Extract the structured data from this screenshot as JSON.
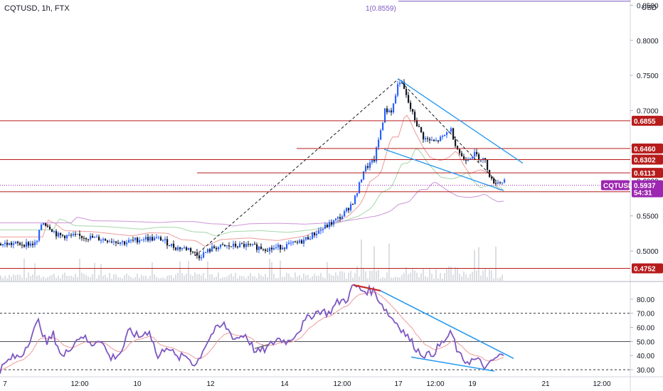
{
  "header": {
    "symbol_line": "CQTUSD, 1h, FTX",
    "fib_label": "1(0.8559)",
    "currency": "USD"
  },
  "colors": {
    "up": "#2962ff",
    "down": "#131722",
    "level": "#b71c1c",
    "trend": "#2196f3",
    "rsi": "#7e57c2",
    "tag_bg": "#b71c1c",
    "symbol_tag_bg": "#9c27b0"
  },
  "chart_data": [
    {
      "type": "candlestick",
      "title": "CQTUSD, 1h, FTX",
      "ylabel": "USD",
      "ylim": [
        0.4575,
        0.8575
      ],
      "y_ticks": [
        0.5,
        0.55,
        0.6,
        0.65,
        0.7,
        0.75,
        0.8,
        0.85
      ],
      "y_tick_labels": [
        "0.5000",
        "0.5500",
        "0.6000",
        "0.6500",
        "0.7000",
        "0.7500",
        "0.8000",
        "0.8500"
      ],
      "x_tick_labels": [
        "7",
        "12:00",
        "10",
        "12",
        "14",
        "12:00",
        "17",
        "12:00",
        "19",
        "21",
        "12:00"
      ],
      "price_path": [
        [
          0,
          0.51
        ],
        [
          50,
          0.51
        ],
        [
          58,
          0.542
        ],
        [
          68,
          0.535
        ],
        [
          80,
          0.522
        ],
        [
          120,
          0.52
        ],
        [
          175,
          0.512
        ],
        [
          200,
          0.518
        ],
        [
          225,
          0.517
        ],
        [
          245,
          0.505
        ],
        [
          265,
          0.503
        ],
        [
          278,
          0.492
        ],
        [
          300,
          0.505
        ],
        [
          340,
          0.508
        ],
        [
          380,
          0.503
        ],
        [
          420,
          0.512
        ],
        [
          450,
          0.53
        ],
        [
          480,
          0.55
        ],
        [
          495,
          0.57
        ],
        [
          500,
          0.58
        ],
        [
          510,
          0.615
        ],
        [
          525,
          0.63
        ],
        [
          540,
          0.7
        ],
        [
          550,
          0.7
        ],
        [
          560,
          0.745
        ],
        [
          565,
          0.735
        ],
        [
          575,
          0.705
        ],
        [
          585,
          0.68
        ],
        [
          595,
          0.66
        ],
        [
          610,
          0.655
        ],
        [
          622,
          0.662
        ],
        [
          632,
          0.675
        ],
        [
          640,
          0.65
        ],
        [
          650,
          0.63
        ],
        [
          665,
          0.638
        ],
        [
          680,
          0.63
        ],
        [
          690,
          0.6
        ],
        [
          700,
          0.598
        ],
        [
          708,
          0.6
        ]
      ],
      "levels": [
        {
          "label": "0.6855",
          "value": 0.6855
        },
        {
          "label": "0.6460",
          "value": 0.646
        },
        {
          "label": "0.6302",
          "value": 0.6302
        },
        {
          "label": "0.6113",
          "value": 0.6113
        },
        {
          "label": "0.5843",
          "value": 0.5843
        },
        {
          "label": "0.4752",
          "value": 0.4752
        }
      ],
      "last_price": {
        "symbol": "CQTUSD",
        "price": "0.5937",
        "countdown": "54:31",
        "value": 0.5937
      },
      "fib_level": 0.8559
    },
    {
      "type": "line",
      "ylim": [
        25,
        92
      ],
      "y_ticks": [
        30,
        40,
        50,
        60,
        70,
        80
      ],
      "y_tick_labels": [
        "30.00",
        "40.00",
        "50.00",
        "60.00",
        "70.00",
        "80.00"
      ],
      "reference_lines": [
        30,
        50,
        70
      ],
      "rsi_path": [
        [
          0,
          30
        ],
        [
          15,
          38
        ],
        [
          30,
          40
        ],
        [
          45,
          55
        ],
        [
          55,
          65
        ],
        [
          65,
          48
        ],
        [
          75,
          55
        ],
        [
          88,
          38
        ],
        [
          100,
          47
        ],
        [
          115,
          55
        ],
        [
          128,
          47
        ],
        [
          140,
          53
        ],
        [
          155,
          38
        ],
        [
          170,
          42
        ],
        [
          182,
          58
        ],
        [
          195,
          53
        ],
        [
          210,
          58
        ],
        [
          222,
          38
        ],
        [
          235,
          48
        ],
        [
          248,
          38
        ],
        [
          262,
          40
        ],
        [
          275,
          33
        ],
        [
          288,
          47
        ],
        [
          300,
          57
        ],
        [
          315,
          62
        ],
        [
          330,
          52
        ],
        [
          345,
          55
        ],
        [
          360,
          42
        ],
        [
          375,
          45
        ],
        [
          390,
          52
        ],
        [
          405,
          50
        ],
        [
          420,
          58
        ],
        [
          435,
          68
        ],
        [
          450,
          72
        ],
        [
          462,
          70
        ],
        [
          475,
          78
        ],
        [
          488,
          80
        ],
        [
          497,
          90
        ],
        [
          510,
          86
        ],
        [
          525,
          86
        ],
        [
          535,
          78
        ],
        [
          548,
          68
        ],
        [
          560,
          62
        ],
        [
          575,
          52
        ],
        [
          590,
          42
        ],
        [
          605,
          40
        ],
        [
          620,
          48
        ],
        [
          635,
          56
        ],
        [
          645,
          40
        ],
        [
          655,
          36
        ],
        [
          670,
          37
        ],
        [
          685,
          31
        ],
        [
          695,
          38
        ],
        [
          705,
          40
        ]
      ]
    }
  ]
}
